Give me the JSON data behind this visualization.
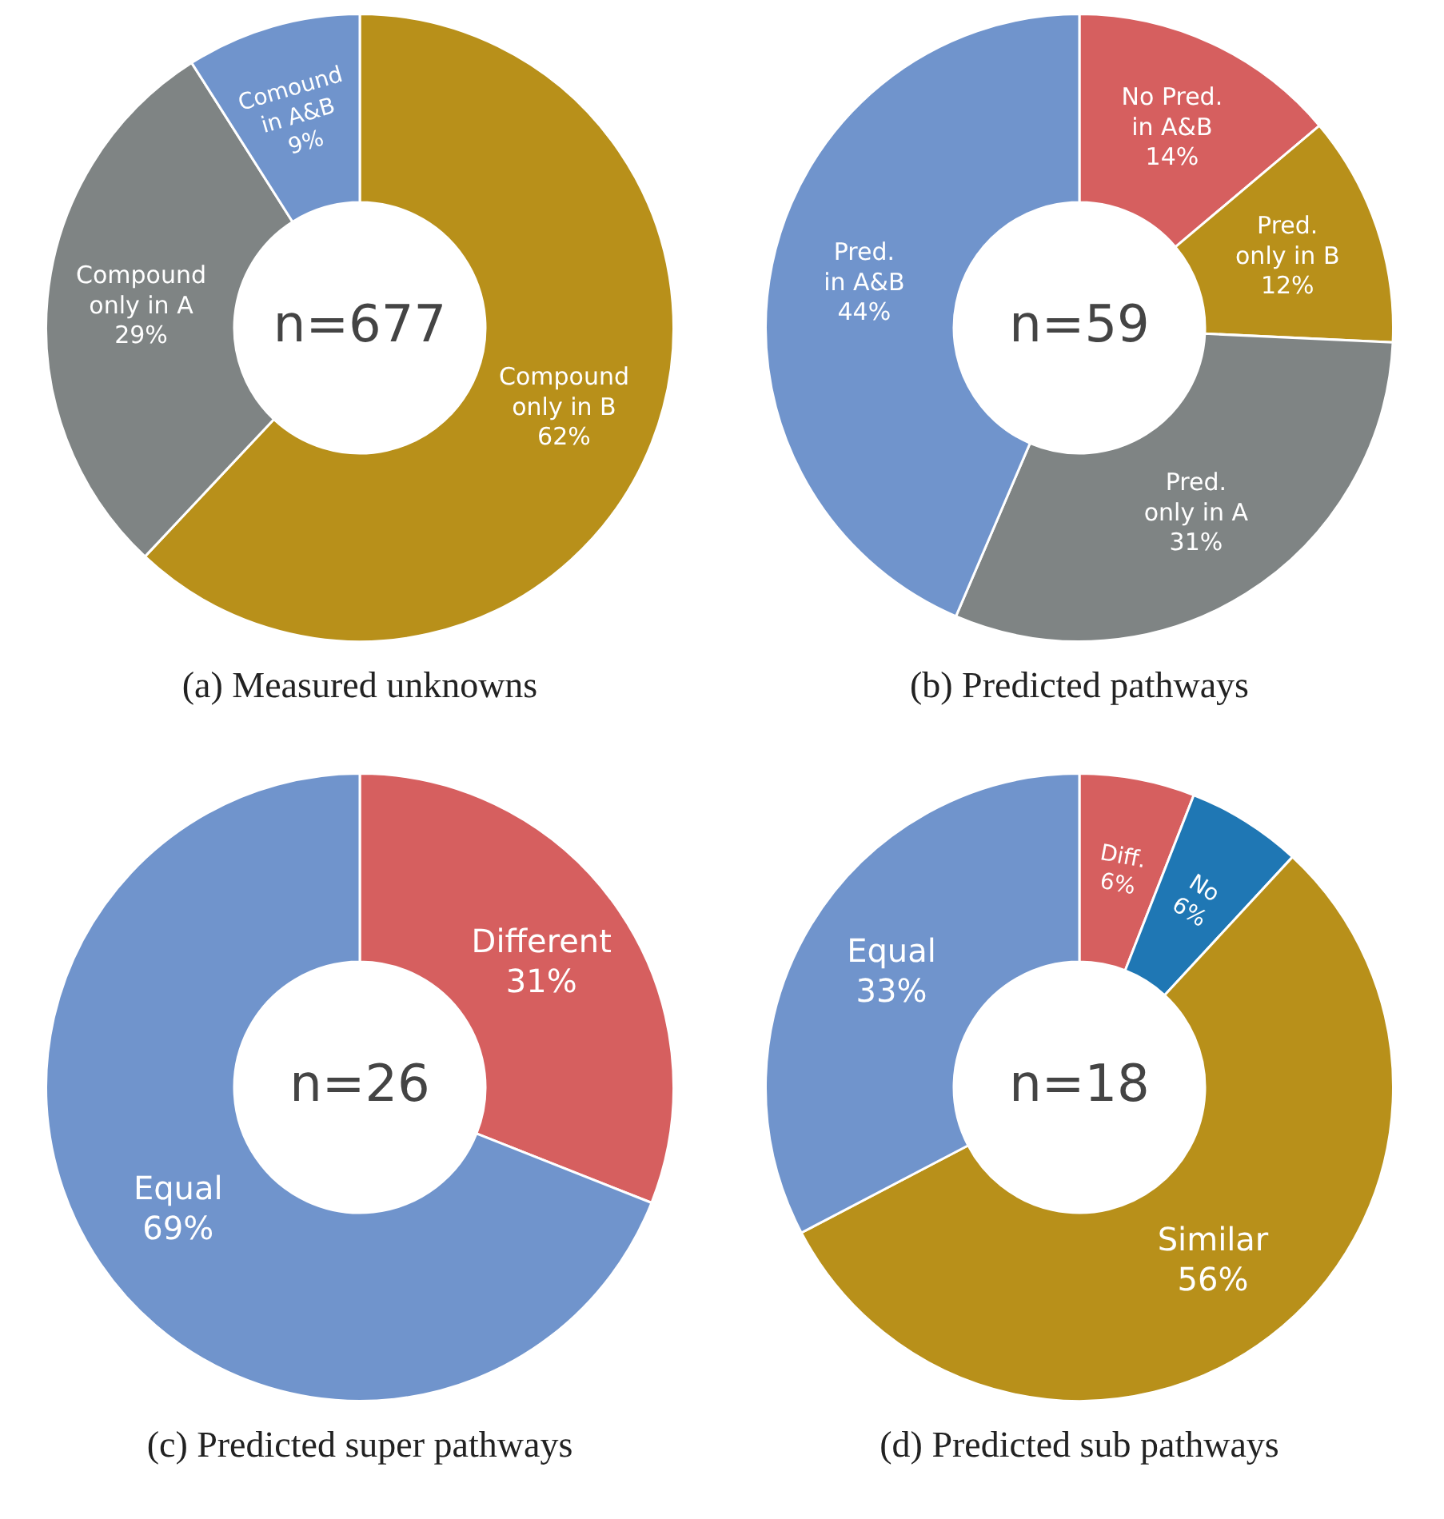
{
  "chart_data": [
    {
      "type": "donut",
      "title": "(a) Measured unknowns",
      "categories": [
        "Compound\nonly in B",
        "Compound\nonly in A",
        "Comound\nin A&B"
      ],
      "values": [
        62,
        29,
        9
      ],
      "colors": [
        "#b8901a",
        "#7f8484",
        "#7094cc"
      ],
      "value_labels": [
        "62%",
        "29%",
        "9%"
      ],
      "annotations": [
        "n=677"
      ],
      "legend": false
    },
    {
      "type": "donut",
      "title": "(b) Predicted pathways",
      "categories": [
        "No Pred.\nin A&B",
        "Pred.\nonly in B",
        "Pred.\nonly in A",
        "Pred.\nin A&B"
      ],
      "values": [
        14,
        12,
        31,
        44
      ],
      "colors": [
        "#d65f5f",
        "#b8901a",
        "#7f8484",
        "#7094cc"
      ],
      "value_labels": [
        "14%",
        "12%",
        "31%",
        "44%"
      ],
      "annotations": [
        "n=59"
      ],
      "legend": false
    },
    {
      "type": "donut",
      "title": "(c) Predicted super pathways",
      "categories": [
        "Different",
        "Equal"
      ],
      "values": [
        31,
        69
      ],
      "colors": [
        "#d65f5f",
        "#7094cc"
      ],
      "value_labels": [
        "31%",
        "69%"
      ],
      "annotations": [
        "n=26"
      ],
      "legend": false
    },
    {
      "type": "donut",
      "title": "(d) Predicted sub pathways",
      "categories": [
        "Diff.",
        "No",
        "Similar",
        "Equal"
      ],
      "values": [
        6,
        6,
        56,
        33
      ],
      "colors": [
        "#d65f5f",
        "#1f77b4",
        "#b8901a",
        "#7094cc"
      ],
      "value_labels": [
        "6%",
        "6%",
        "56%",
        "33%"
      ],
      "annotations": [
        "n=18"
      ],
      "legend": false
    }
  ]
}
